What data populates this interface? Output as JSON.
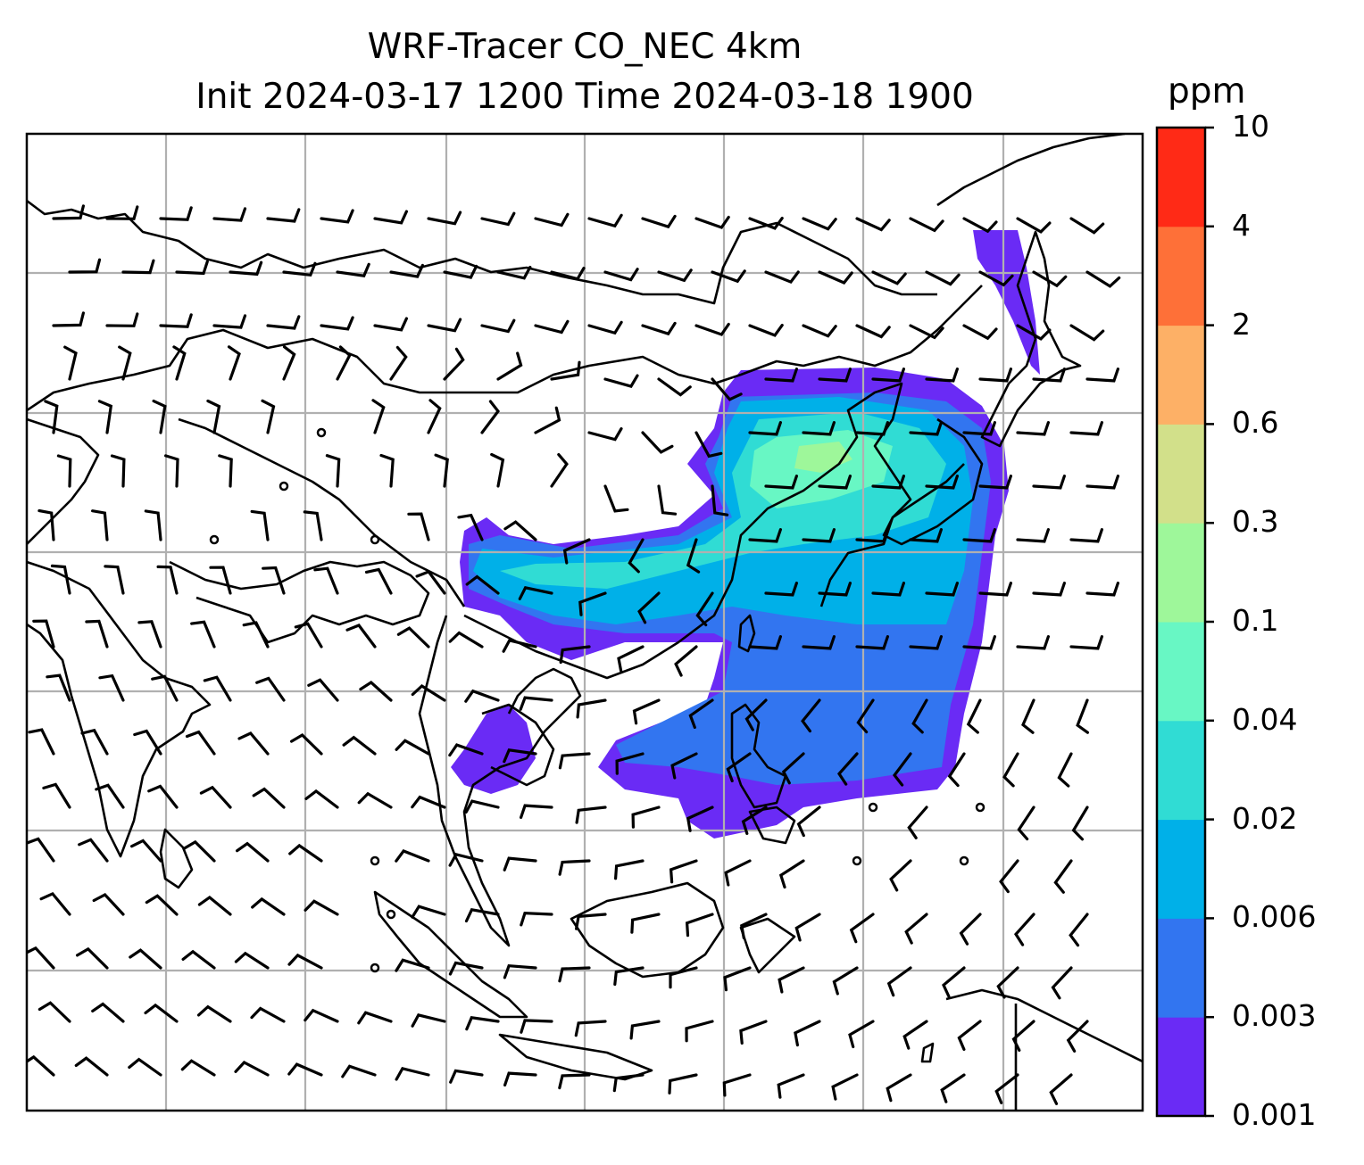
{
  "title": {
    "line1": "WRF-Tracer CO_NEC 4km",
    "line2": "Init 2024-03-17 1200 Time 2024-03-18 1900"
  },
  "colorbar": {
    "unit": "ppm",
    "levels": [
      "0.001",
      "0.003",
      "0.006",
      "0.02",
      "0.04",
      "0.1",
      "0.3",
      "0.6",
      "2",
      "4",
      "10"
    ],
    "colors": [
      "#6a2bf5",
      "#3275f0",
      "#00b0e8",
      "#30dcd4",
      "#68f7c4",
      "#9ef79a",
      "#d2e08a",
      "#fdb066",
      "#fe7038",
      "#ff2a16"
    ]
  },
  "map": {
    "plume_colors": {
      "lowest": "#6a2bf5",
      "low": "#3275f0",
      "mid": "#00b0e8",
      "midhigh": "#30dcd4",
      "high": "#68f7c4",
      "higher": "#9ef79a"
    },
    "gridline_color": "#b0b0b0",
    "coastline_color": "#000000"
  }
}
